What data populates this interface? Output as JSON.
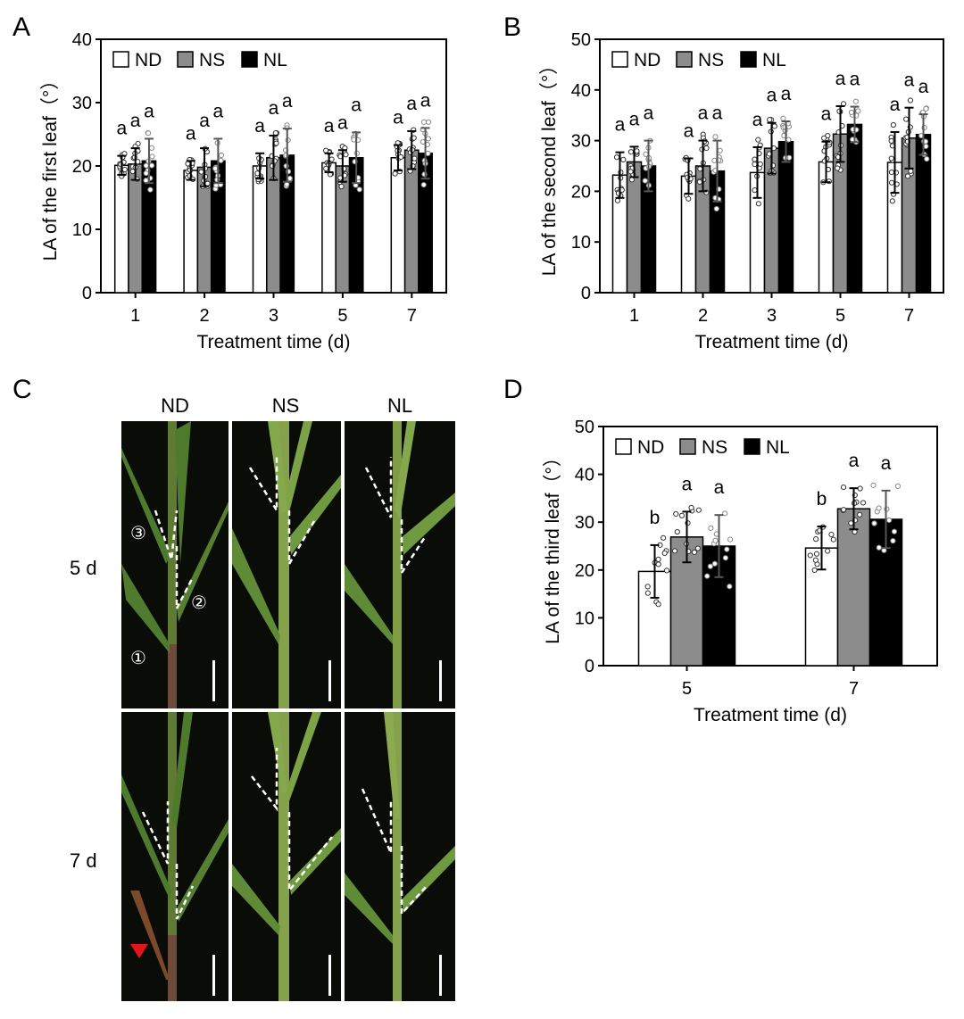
{
  "panels": {
    "a": "A",
    "b": "B",
    "c": "C",
    "d": "D"
  },
  "legend": [
    {
      "name": "ND",
      "color": "#ffffff"
    },
    {
      "name": "NS",
      "color": "#8c8c8c"
    },
    {
      "name": "NL",
      "color": "#000000"
    }
  ],
  "photo_panel": {
    "columns": [
      "ND",
      "NS",
      "NL"
    ],
    "rows": [
      "5 d",
      "7 d"
    ],
    "leaf_markers": [
      "③",
      "②",
      "①"
    ]
  },
  "chart_data": [
    {
      "type": "bar",
      "ylabel": "LA of the first leaf（°）",
      "xlabel": "Treatment time (d)",
      "categories": [
        "1",
        "2",
        "3",
        "5",
        "7"
      ],
      "ylim": [
        0,
        40
      ],
      "yticks": [
        0,
        10,
        20,
        30,
        40
      ],
      "series": [
        {
          "name": "ND",
          "values": [
            20.1,
            19.3,
            20.0,
            20.5,
            21.3
          ],
          "errors": [
            1.5,
            1.5,
            2.0,
            1.5,
            2.0
          ]
        },
        {
          "name": "NS",
          "values": [
            20.3,
            19.8,
            21.3,
            20.0,
            22.5
          ],
          "errors": [
            2.5,
            3.0,
            3.5,
            2.5,
            3.0
          ]
        },
        {
          "name": "NL",
          "values": [
            20.8,
            20.8,
            21.7,
            21.3,
            22.0
          ],
          "errors": [
            3.5,
            3.5,
            4.2,
            4.0,
            4.0
          ]
        }
      ],
      "letters": [
        [
          "a",
          "a",
          "a"
        ],
        [
          "a",
          "a",
          "a"
        ],
        [
          "a",
          "a",
          "a"
        ],
        [
          "a",
          "a",
          "a"
        ],
        [
          "a",
          "a",
          "a"
        ]
      ]
    },
    {
      "type": "bar",
      "ylabel": "LA of the second leaf（°）",
      "xlabel": "Treatment time (d)",
      "categories": [
        "1",
        "2",
        "3",
        "5",
        "7"
      ],
      "ylim": [
        0,
        50
      ],
      "yticks": [
        0,
        10,
        20,
        30,
        40,
        50
      ],
      "series": [
        {
          "name": "ND",
          "values": [
            23.2,
            23.0,
            23.7,
            25.8,
            25.7
          ],
          "errors": [
            4.5,
            3.5,
            5.0,
            4.0,
            6.0
          ]
        },
        {
          "name": "NS",
          "values": [
            25.8,
            25.0,
            28.5,
            31.3,
            30.5
          ],
          "errors": [
            3.0,
            5.0,
            5.0,
            5.5,
            6.0
          ]
        },
        {
          "name": "NL",
          "values": [
            25.0,
            24.0,
            29.8,
            33.2,
            31.2
          ],
          "errors": [
            5.0,
            6.0,
            4.0,
            3.5,
            4.0
          ]
        }
      ],
      "letters": [
        [
          "a",
          "a",
          "a"
        ],
        [
          "a",
          "a",
          "a"
        ],
        [
          "a",
          "a",
          "a"
        ],
        [
          "a",
          "a",
          "a"
        ],
        [
          "a",
          "a",
          "a"
        ]
      ]
    },
    {
      "type": "bar",
      "ylabel": "LA of the third leaf（°）",
      "xlabel": "Treatment time (d)",
      "categories": [
        "5",
        "7"
      ],
      "ylim": [
        0,
        50
      ],
      "yticks": [
        0,
        10,
        20,
        30,
        40,
        50
      ],
      "series": [
        {
          "name": "ND",
          "values": [
            19.7,
            24.6
          ],
          "errors": [
            5.5,
            4.5
          ]
        },
        {
          "name": "NS",
          "values": [
            26.9,
            32.8
          ],
          "errors": [
            5.3,
            4.3
          ]
        },
        {
          "name": "NL",
          "values": [
            25.0,
            30.6
          ],
          "errors": [
            6.5,
            6.0
          ]
        }
      ],
      "letters": [
        [
          "b",
          "a",
          "a"
        ],
        [
          "b",
          "a",
          "a"
        ]
      ]
    }
  ]
}
